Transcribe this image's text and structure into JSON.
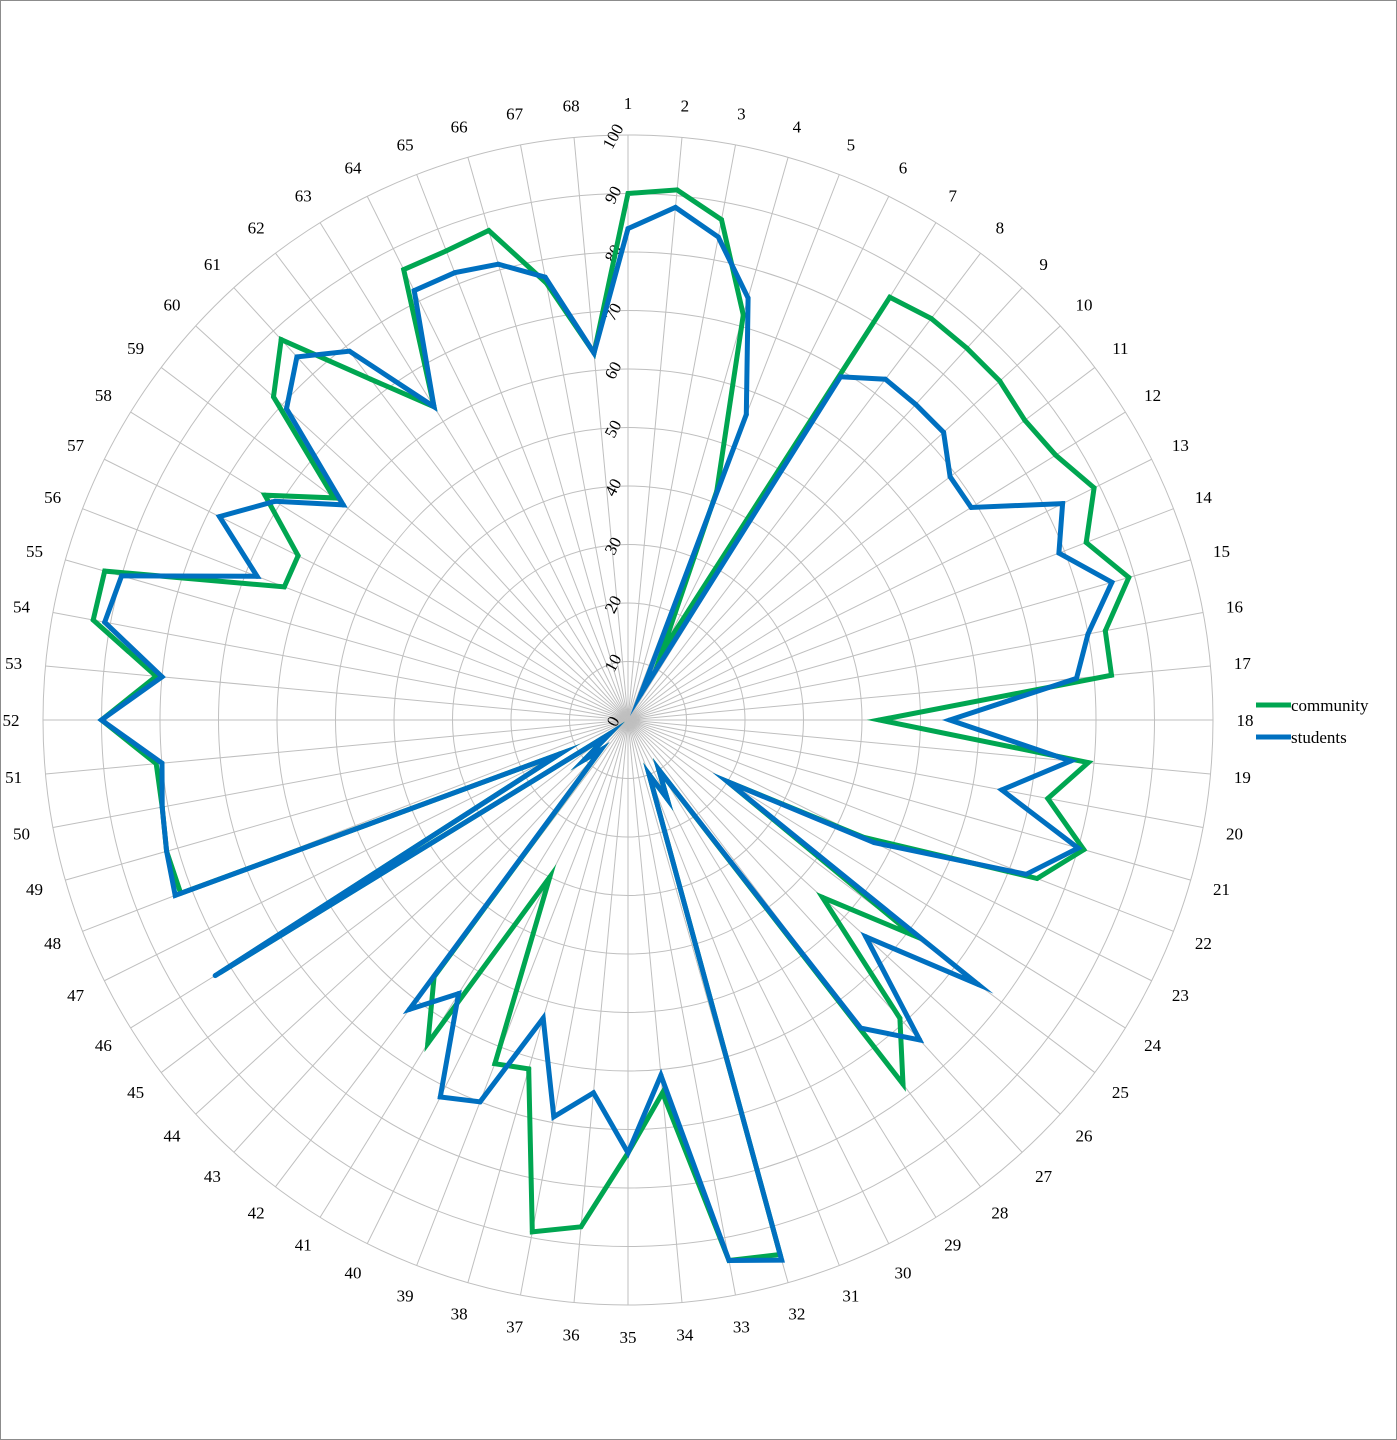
{
  "chart_data": {
    "type": "radar",
    "categories": [
      "1",
      "2",
      "3",
      "4",
      "5",
      "6",
      "7",
      "8",
      "9",
      "10",
      "11",
      "12",
      "13",
      "14",
      "15",
      "16",
      "17",
      "18",
      "19",
      "20",
      "21",
      "22",
      "23",
      "24",
      "25",
      "26",
      "27",
      "28",
      "29",
      "30",
      "31",
      "32",
      "33",
      "34",
      "35",
      "36",
      "37",
      "38",
      "39",
      "40",
      "41",
      "42",
      "43",
      "44",
      "45",
      "46",
      "47",
      "48",
      "49",
      "50",
      "51",
      "52",
      "53",
      "54",
      "55",
      "56",
      "57",
      "58",
      "59",
      "60",
      "61",
      "62",
      "63",
      "64",
      "65",
      "66",
      "67",
      "68"
    ],
    "rlim": [
      0,
      100
    ],
    "ticks": [
      0,
      10,
      20,
      30,
      40,
      50,
      60,
      70,
      80,
      90,
      100
    ],
    "series": [
      {
        "name": "community",
        "color": "#00A651",
        "values": [
          90,
          91,
          87,
          72,
          42,
          13,
          85,
          86,
          86,
          86,
          85,
          86,
          89,
          84,
          89,
          83,
          83,
          43,
          79,
          73,
          81,
          75,
          45,
          20,
          61,
          45,
          69,
          78,
          10,
          15,
          10,
          95,
          94,
          64,
          74,
          87,
          89,
          62,
          63,
          30,
          65,
          55,
          7,
          10,
          4,
          82,
          13,
          82,
          82,
          81,
          81,
          90,
          81,
          93,
          93,
          63,
          63,
          73,
          63,
          82,
          88,
          73,
          63,
          86,
          86,
          87,
          76,
          63
        ]
      },
      {
        "name": "students",
        "color": "#0070C0",
        "values": [
          84,
          88,
          84,
          75,
          56,
          5,
          69,
          73,
          73,
          73,
          69,
          69,
          83,
          79,
          86,
          80,
          77,
          55,
          76,
          65,
          80,
          73,
          47,
          20,
          75,
          55,
          74,
          66,
          10,
          15,
          10,
          96,
          94,
          61,
          74,
          64,
          69,
          53,
          70,
          72,
          55,
          62,
          7,
          10,
          4,
          83,
          13,
          83,
          82,
          81,
          80,
          90,
          80,
          91,
          90,
          68,
          78,
          71,
          61,
          79,
          84,
          79,
          63,
          82,
          82,
          81,
          77,
          63
        ]
      }
    ],
    "legend": {
      "position": "right",
      "items": [
        "community",
        "students"
      ]
    },
    "grid": true
  }
}
